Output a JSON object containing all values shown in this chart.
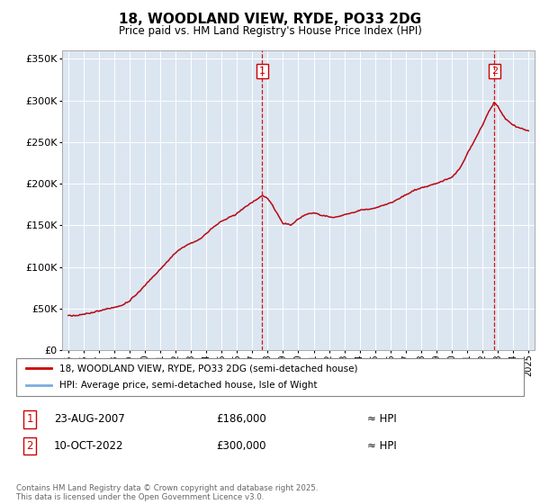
{
  "title": "18, WOODLAND VIEW, RYDE, PO33 2DG",
  "subtitle": "Price paid vs. HM Land Registry's House Price Index (HPI)",
  "legend_line1": "18, WOODLAND VIEW, RYDE, PO33 2DG (semi-detached house)",
  "legend_line2": "HPI: Average price, semi-detached house, Isle of Wight",
  "annotation1_label": "1",
  "annotation1_date": "23-AUG-2007",
  "annotation1_price": "£186,000",
  "annotation1_hpi": "≈ HPI",
  "annotation1_year": 2007.65,
  "annotation1_value": 186000,
  "annotation2_label": "2",
  "annotation2_date": "10-OCT-2022",
  "annotation2_price": "£300,000",
  "annotation2_hpi": "≈ HPI",
  "annotation2_year": 2022.78,
  "annotation2_value": 300000,
  "hpi_color": "#7aaddc",
  "price_color": "#cc0000",
  "annotation_color": "#cc0000",
  "background_color": "#dce6f1",
  "ylim": [
    0,
    360000
  ],
  "yticks": [
    0,
    50000,
    100000,
    150000,
    200000,
    250000,
    300000,
    350000
  ],
  "footer": "Contains HM Land Registry data © Crown copyright and database right 2025.\nThis data is licensed under the Open Government Licence v3.0."
}
